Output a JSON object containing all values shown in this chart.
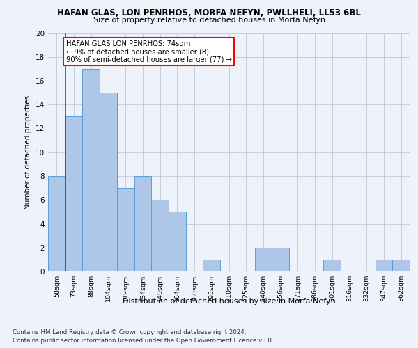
{
  "title1": "HAFAN GLAS, LON PENRHOS, MORFA NEFYN, PWLLHELI, LL53 6BL",
  "title2": "Size of property relative to detached houses in Morfa Nefyn",
  "xlabel": "Distribution of detached houses by size in Morfa Nefyn",
  "ylabel": "Number of detached properties",
  "categories": [
    "58sqm",
    "73sqm",
    "88sqm",
    "104sqm",
    "119sqm",
    "134sqm",
    "149sqm",
    "164sqm",
    "180sqm",
    "195sqm",
    "210sqm",
    "225sqm",
    "240sqm",
    "256sqm",
    "271sqm",
    "286sqm",
    "301sqm",
    "316sqm",
    "332sqm",
    "347sqm",
    "362sqm"
  ],
  "values": [
    8,
    13,
    17,
    15,
    7,
    8,
    6,
    5,
    0,
    1,
    0,
    0,
    2,
    2,
    0,
    0,
    1,
    0,
    0,
    1,
    1
  ],
  "bar_color": "#aec6e8",
  "bar_edge_color": "#5a9fd4",
  "ylim": [
    0,
    20
  ],
  "yticks": [
    0,
    2,
    4,
    6,
    8,
    10,
    12,
    14,
    16,
    18,
    20
  ],
  "property_line_x": 0.5,
  "annotation_text": "HAFAN GLAS LON PENRHOS: 74sqm\n← 9% of detached houses are smaller (8)\n90% of semi-detached houses are larger (77) →",
  "footer1": "Contains HM Land Registry data © Crown copyright and database right 2024.",
  "footer2": "Contains public sector information licensed under the Open Government Licence v3.0.",
  "background_color": "#eef2fb",
  "plot_background": "#eef2fb"
}
